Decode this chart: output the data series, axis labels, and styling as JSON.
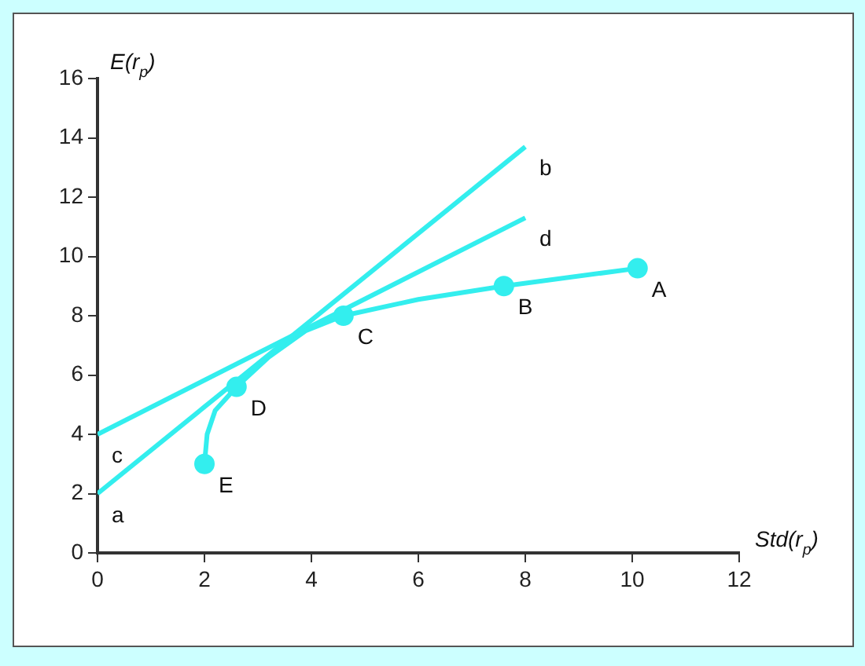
{
  "chart_data": {
    "type": "line",
    "xlabel": "Std(r$_{p}$)",
    "ylabel": "E(r$_{p}$)",
    "xlim": [
      0,
      12
    ],
    "xticks": [
      0,
      2,
      4,
      6,
      8,
      10,
      12
    ],
    "ylim": [
      0,
      16
    ],
    "yticks": [
      0,
      2,
      4,
      6,
      8,
      10,
      12,
      14,
      16
    ],
    "grid": false,
    "legend": false,
    "series": [
      {
        "type": "line",
        "color": "#33eeee",
        "marker": "none",
        "x": [
          0,
          8
        ],
        "values": [
          2,
          13.7
        ]
      },
      {
        "type": "line",
        "color": "#33eeee",
        "marker": "none",
        "x": [
          0,
          8
        ],
        "values": [
          4,
          11.3
        ]
      },
      {
        "type": "line",
        "color": "#33eeee",
        "marker": "none",
        "x": [
          2,
          2.05,
          2.2,
          2.6,
          3.2,
          3.9,
          4.6,
          6,
          7.6,
          10.1
        ],
        "values": [
          3,
          4,
          4.8,
          5.6,
          6.6,
          7.5,
          8,
          8.55,
          9,
          9.6
        ]
      },
      {
        "type": "scatter",
        "color": "#33eeee",
        "marker": "circle",
        "x": [
          10.1,
          7.6,
          4.6,
          2.6,
          2
        ],
        "values": [
          9.6,
          9,
          8,
          5.6,
          3
        ]
      }
    ],
    "annotations": [
      {
        "text": "a",
        "x": 0,
        "y": 2
      },
      {
        "text": "b",
        "x": 8,
        "y": 13.7
      },
      {
        "text": "c",
        "x": 0,
        "y": 4
      },
      {
        "text": "d",
        "x": 8,
        "y": 11.3
      },
      {
        "text": "A",
        "x": 10.1,
        "y": 9.6
      },
      {
        "text": "B",
        "x": 7.6,
        "y": 9
      },
      {
        "text": "C",
        "x": 4.6,
        "y": 8
      },
      {
        "text": "D",
        "x": 2.6,
        "y": 5.6
      },
      {
        "text": "E",
        "x": 2,
        "y": 3
      }
    ]
  }
}
